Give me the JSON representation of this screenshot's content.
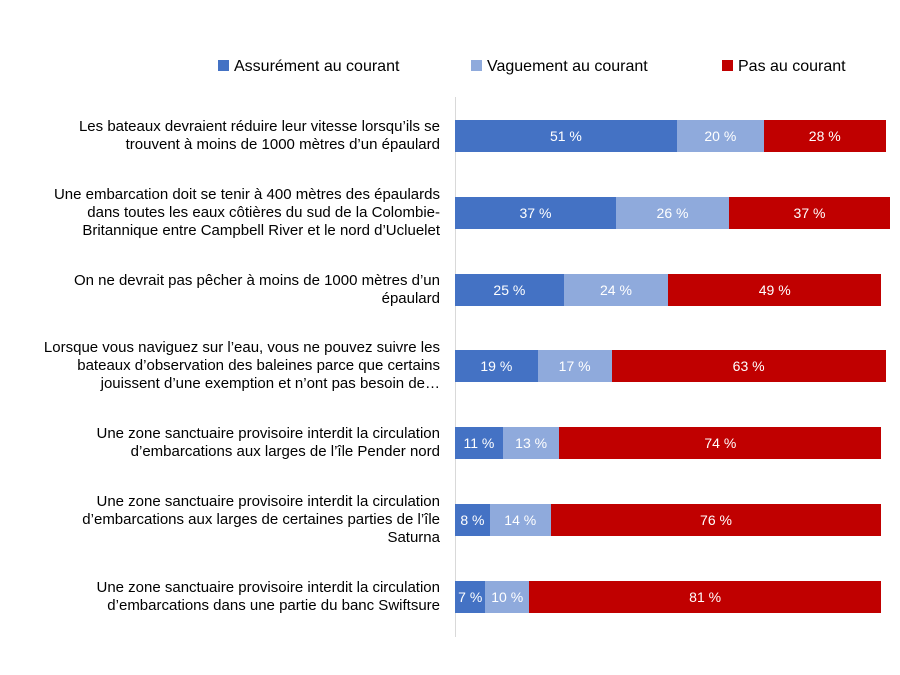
{
  "chart_data": {
    "type": "stacked-bar-horizontal",
    "categories": [
      "Les bateaux devraient réduire leur vitesse lorsqu’ils se trouvent à moins de 1000 mètres d’un épaulard",
      "Une embarcation doit se tenir à 400 mètres des épaulards dans toutes les eaux côtières du sud de la Colombie-Britannique entre Campbell River et le nord d’Ucluelet",
      "On ne devrait pas pêcher à moins de 1000 mètres d’un épaulard",
      "Lorsque vous naviguez sur l’eau, vous ne pouvez suivre les bateaux d’observation des baleines parce que certains jouissent d’une exemption et n’ont pas besoin de…",
      "Une zone sanctuaire provisoire interdit la circulation d’embarcations aux larges de l’île Pender nord",
      "Une zone sanctuaire provisoire interdit la circulation d’embarcations aux larges de certaines parties de l’île Saturna",
      "Une zone sanctuaire provisoire interdit la circulation d’embarcations dans une partie du banc Swiftsure"
    ],
    "series": [
      {
        "name": "Assurément au courant",
        "color": "#4472c4",
        "values": [
          51,
          37,
          25,
          19,
          11,
          8,
          7
        ],
        "value_labels": [
          "51 %",
          "37 %",
          "25 %",
          "19 %",
          "11 %",
          "8 %",
          "7 %"
        ]
      },
      {
        "name": "Vaguement au courant",
        "color": "#8faadc",
        "values": [
          20,
          26,
          24,
          17,
          13,
          14,
          10
        ],
        "value_labels": [
          "20 %",
          "26 %",
          "24 %",
          "17 %",
          "13 %",
          "14 %",
          "10 %"
        ]
      },
      {
        "name": "Pas au courant",
        "color": "#c00000",
        "values": [
          28,
          37,
          49,
          63,
          74,
          76,
          81
        ],
        "value_labels": [
          "28 %",
          "37 %",
          "49 %",
          "63 %",
          "74 %",
          "76 %",
          "81 %"
        ]
      }
    ],
    "xlim": [
      0,
      100
    ],
    "legend": "top"
  }
}
